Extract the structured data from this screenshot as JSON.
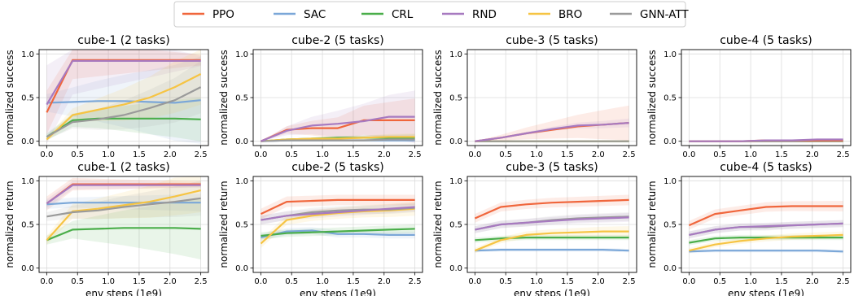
{
  "legend": [
    {
      "name": "PPO",
      "color": "#f0663c"
    },
    {
      "name": "SAC",
      "color": "#7ba7d8"
    },
    {
      "name": "CRL",
      "color": "#4aae4a"
    },
    {
      "name": "RND",
      "color": "#a77ac0"
    },
    {
      "name": "BRO",
      "color": "#f6c443"
    },
    {
      "name": "GNN-ATT",
      "color": "#9a9a9a"
    }
  ],
  "chart_data": [
    {
      "type": "line",
      "title": "cube-1 (2 tasks)",
      "ylabel": "normalized success",
      "xlabel": "",
      "x": [
        0,
        0.42,
        0.83,
        1.25,
        1.67,
        2.08,
        2.5
      ],
      "xlim": [
        0,
        2.5
      ],
      "ylim": [
        0,
        1.0
      ],
      "xticks": [
        "0.0",
        "0.5",
        "1.0",
        "1.5",
        "2.0",
        "2.5"
      ],
      "yticks": [
        "0.0",
        "0.5",
        "1.0"
      ],
      "series": [
        {
          "name": "PPO",
          "color": "#f0663c",
          "values": [
            0.33,
            0.93,
            0.93,
            0.93,
            0.93,
            0.93,
            0.93
          ],
          "band": [
            0.25,
            0.06
          ]
        },
        {
          "name": "SAC",
          "color": "#7ba7d8",
          "values": [
            0.44,
            0.45,
            0.46,
            0.46,
            0.45,
            0.44,
            0.47
          ],
          "band": [
            0.1,
            0.5
          ]
        },
        {
          "name": "CRL",
          "color": "#4aae4a",
          "values": [
            0.05,
            0.24,
            0.26,
            0.26,
            0.26,
            0.26,
            0.25
          ],
          "band": [
            0.04,
            0.25
          ]
        },
        {
          "name": "RND",
          "color": "#a77ac0",
          "values": [
            0.42,
            0.92,
            0.92,
            0.92,
            0.92,
            0.92,
            0.92
          ],
          "band": [
            0.45,
            0.06
          ]
        },
        {
          "name": "BRO",
          "color": "#f6c443",
          "values": [
            0.02,
            0.3,
            0.36,
            0.42,
            0.5,
            0.62,
            0.77
          ],
          "band": [
            0.02,
            0.35
          ]
        },
        {
          "name": "GNN-ATT",
          "color": "#9a9a9a",
          "values": [
            0.05,
            0.22,
            0.25,
            0.3,
            0.38,
            0.47,
            0.62
          ],
          "band": [
            0.03,
            0.3
          ]
        }
      ]
    },
    {
      "type": "line",
      "title": "cube-2 (5 tasks)",
      "ylabel": "normalized success",
      "xlabel": "",
      "x": [
        0,
        0.42,
        0.83,
        1.25,
        1.67,
        2.08,
        2.5
      ],
      "xlim": [
        0,
        2.5
      ],
      "ylim": [
        0,
        1.0
      ],
      "xticks": [
        "0.0",
        "0.5",
        "1.0",
        "1.5",
        "2.0",
        "2.5"
      ],
      "yticks": [
        "0.0",
        "0.5",
        "1.0"
      ],
      "series": [
        {
          "name": "PPO",
          "color": "#f0663c",
          "values": [
            0.0,
            0.13,
            0.15,
            0.15,
            0.24,
            0.24,
            0.24
          ],
          "band": [
            0.0,
            0.25
          ]
        },
        {
          "name": "SAC",
          "color": "#7ba7d8",
          "values": [
            0.0,
            0.01,
            0.01,
            0.01,
            0.01,
            0.01,
            0.01
          ],
          "band": [
            0.0,
            0.02
          ]
        },
        {
          "name": "CRL",
          "color": "#4aae4a",
          "values": [
            0.0,
            0.02,
            0.03,
            0.04,
            0.04,
            0.04,
            0.04
          ],
          "band": [
            0.0,
            0.04
          ]
        },
        {
          "name": "RND",
          "color": "#a77ac0",
          "values": [
            0.0,
            0.12,
            0.18,
            0.2,
            0.23,
            0.28,
            0.28
          ],
          "band": [
            0.0,
            0.3
          ]
        },
        {
          "name": "BRO",
          "color": "#f6c443",
          "values": [
            0.0,
            0.02,
            0.03,
            0.03,
            0.04,
            0.05,
            0.05
          ],
          "band": [
            0.0,
            0.04
          ]
        },
        {
          "name": "GNN-ATT",
          "color": "#9a9a9a",
          "values": [
            0.0,
            0.01,
            0.01,
            0.01,
            0.01,
            0.02,
            0.02
          ],
          "band": [
            0.0,
            0.02
          ]
        }
      ]
    },
    {
      "type": "line",
      "title": "cube-3 (5 tasks)",
      "ylabel": "normalized success",
      "xlabel": "",
      "x": [
        0,
        0.42,
        0.83,
        1.25,
        1.67,
        2.08,
        2.5
      ],
      "xlim": [
        0,
        2.5
      ],
      "ylim": [
        0,
        1.0
      ],
      "xticks": [
        "0.0",
        "0.5",
        "1.0",
        "1.5",
        "2.0",
        "2.5"
      ],
      "yticks": [
        "0.0",
        "0.5",
        "1.0"
      ],
      "series": [
        {
          "name": "PPO",
          "color": "#f0663c",
          "values": [
            0.0,
            0.04,
            0.09,
            0.13,
            0.17,
            0.19,
            0.21
          ],
          "band": [
            0.0,
            0.2
          ]
        },
        {
          "name": "SAC",
          "color": "#7ba7d8",
          "values": [
            0.0,
            0.0,
            0.0,
            0.0,
            0.0,
            0.0,
            0.0
          ],
          "band": [
            0.0,
            0.0
          ]
        },
        {
          "name": "CRL",
          "color": "#4aae4a",
          "values": [
            0.0,
            0.0,
            0.0,
            0.0,
            0.0,
            0.0,
            0.0
          ],
          "band": [
            0.0,
            0.0
          ]
        },
        {
          "name": "RND",
          "color": "#a77ac0",
          "values": [
            0.0,
            0.04,
            0.09,
            0.14,
            0.18,
            0.19,
            0.21
          ],
          "band": [
            0.0,
            0.05
          ]
        },
        {
          "name": "BRO",
          "color": "#f6c443",
          "values": [
            0.0,
            0.0,
            0.0,
            0.0,
            0.0,
            0.0,
            0.0
          ],
          "band": [
            0.0,
            0.0
          ]
        },
        {
          "name": "GNN-ATT",
          "color": "#9a9a9a",
          "values": [
            0.0,
            0.0,
            0.0,
            0.0,
            0.0,
            0.0,
            0.0
          ],
          "band": [
            0.0,
            0.0
          ]
        }
      ]
    },
    {
      "type": "line",
      "title": "cube-4 (5 tasks)",
      "ylabel": "normalized success",
      "xlabel": "",
      "x": [
        0,
        0.42,
        0.83,
        1.25,
        1.67,
        2.08,
        2.5
      ],
      "xlim": [
        0,
        2.5
      ],
      "ylim": [
        0,
        1.0
      ],
      "xticks": [
        "0.0",
        "0.5",
        "1.0",
        "1.5",
        "2.0",
        "2.5"
      ],
      "yticks": [
        "0.0",
        "0.5",
        "1.0"
      ],
      "series": [
        {
          "name": "PPO",
          "color": "#f0663c",
          "values": [
            0.0,
            0.0,
            0.0,
            0.01,
            0.01,
            0.01,
            0.01
          ],
          "band": [
            0.0,
            0.01
          ]
        },
        {
          "name": "SAC",
          "color": "#7ba7d8",
          "values": [
            0.0,
            0.0,
            0.0,
            0.0,
            0.0,
            0.0,
            0.0
          ],
          "band": [
            0.0,
            0.0
          ]
        },
        {
          "name": "CRL",
          "color": "#4aae4a",
          "values": [
            0.0,
            0.0,
            0.0,
            0.0,
            0.0,
            0.0,
            0.0
          ],
          "band": [
            0.0,
            0.0
          ]
        },
        {
          "name": "RND",
          "color": "#a77ac0",
          "values": [
            0.0,
            0.0,
            0.0,
            0.01,
            0.01,
            0.02,
            0.02
          ],
          "band": [
            0.0,
            0.01
          ]
        },
        {
          "name": "BRO",
          "color": "#f6c443",
          "values": [
            0.0,
            0.0,
            0.0,
            0.0,
            0.0,
            0.0,
            0.0
          ],
          "band": [
            0.0,
            0.0
          ]
        },
        {
          "name": "GNN-ATT",
          "color": "#9a9a9a",
          "values": [
            0.0,
            0.0,
            0.0,
            0.0,
            0.0,
            0.0,
            0.0
          ],
          "band": [
            0.0,
            0.0
          ]
        }
      ]
    },
    {
      "type": "line",
      "title": "cube-1 (2 tasks)",
      "ylabel": "normalized return",
      "xlabel": "env steps (1e9)",
      "x": [
        0,
        0.42,
        0.83,
        1.25,
        1.67,
        2.08,
        2.5
      ],
      "xlim": [
        0,
        2.5
      ],
      "ylim": [
        0,
        1.0
      ],
      "xticks": [
        "0.0",
        "0.5",
        "1.0",
        "1.5",
        "2.0",
        "2.5"
      ],
      "yticks": [
        "0.0",
        "0.5",
        "1.0"
      ],
      "series": [
        {
          "name": "PPO",
          "color": "#f0663c",
          "values": [
            0.74,
            0.96,
            0.96,
            0.96,
            0.96,
            0.96,
            0.96
          ],
          "band": [
            0.08,
            0.03
          ]
        },
        {
          "name": "SAC",
          "color": "#7ba7d8",
          "values": [
            0.73,
            0.75,
            0.75,
            0.75,
            0.75,
            0.75,
            0.75
          ],
          "band": [
            0.05,
            0.1
          ]
        },
        {
          "name": "CRL",
          "color": "#4aae4a",
          "values": [
            0.32,
            0.44,
            0.45,
            0.46,
            0.46,
            0.46,
            0.45
          ],
          "band": [
            0.05,
            0.35
          ]
        },
        {
          "name": "RND",
          "color": "#a77ac0",
          "values": [
            0.74,
            0.95,
            0.95,
            0.95,
            0.95,
            0.95,
            0.95
          ],
          "band": [
            0.05,
            0.03
          ]
        },
        {
          "name": "BRO",
          "color": "#f6c443",
          "values": [
            0.32,
            0.65,
            0.68,
            0.72,
            0.76,
            0.82,
            0.89
          ],
          "band": [
            0.05,
            0.25
          ]
        },
        {
          "name": "GNN-ATT",
          "color": "#9a9a9a",
          "values": [
            0.59,
            0.64,
            0.66,
            0.7,
            0.73,
            0.76,
            0.8
          ],
          "band": [
            0.05,
            0.2
          ]
        }
      ]
    },
    {
      "type": "line",
      "title": "cube-2 (5 tasks)",
      "ylabel": "normalized return",
      "xlabel": "env steps (1e9)",
      "x": [
        0,
        0.42,
        0.83,
        1.25,
        1.67,
        2.08,
        2.5
      ],
      "xlim": [
        0,
        2.5
      ],
      "ylim": [
        0,
        1.0
      ],
      "xticks": [
        "0.0",
        "0.5",
        "1.0",
        "1.5",
        "2.0",
        "2.5"
      ],
      "yticks": [
        "0.0",
        "0.5",
        "1.0"
      ],
      "series": [
        {
          "name": "PPO",
          "color": "#f0663c",
          "values": [
            0.62,
            0.76,
            0.77,
            0.78,
            0.78,
            0.78,
            0.78
          ],
          "band": [
            0.06,
            0.06
          ]
        },
        {
          "name": "SAC",
          "color": "#7ba7d8",
          "values": [
            0.35,
            0.42,
            0.43,
            0.39,
            0.39,
            0.38,
            0.38
          ],
          "band": [
            0.04,
            0.04
          ]
        },
        {
          "name": "CRL",
          "color": "#4aae4a",
          "values": [
            0.37,
            0.4,
            0.41,
            0.42,
            0.43,
            0.44,
            0.45
          ],
          "band": [
            0.04,
            0.05
          ]
        },
        {
          "name": "RND",
          "color": "#a77ac0",
          "values": [
            0.55,
            0.6,
            0.62,
            0.64,
            0.66,
            0.68,
            0.7
          ],
          "band": [
            0.05,
            0.05
          ]
        },
        {
          "name": "BRO",
          "color": "#f6c443",
          "values": [
            0.28,
            0.55,
            0.6,
            0.63,
            0.65,
            0.66,
            0.68
          ],
          "band": [
            0.05,
            0.08
          ]
        },
        {
          "name": "GNN-ATT",
          "color": "#9a9a9a",
          "values": [
            0.55,
            0.6,
            0.64,
            0.66,
            0.67,
            0.67,
            0.69
          ],
          "band": [
            0.05,
            0.05
          ]
        }
      ]
    },
    {
      "type": "line",
      "title": "cube-3 (5 tasks)",
      "ylabel": "normalized return",
      "xlabel": "env steps (1e9)",
      "x": [
        0,
        0.42,
        0.83,
        1.25,
        1.67,
        2.08,
        2.5
      ],
      "xlim": [
        0,
        2.5
      ],
      "ylim": [
        0,
        1.0
      ],
      "xticks": [
        "0.0",
        "0.5",
        "1.0",
        "1.5",
        "2.0",
        "2.5"
      ],
      "yticks": [
        "0.0",
        "0.5",
        "1.0"
      ],
      "series": [
        {
          "name": "PPO",
          "color": "#f0663c",
          "values": [
            0.57,
            0.7,
            0.73,
            0.75,
            0.76,
            0.77,
            0.78
          ],
          "band": [
            0.05,
            0.06
          ]
        },
        {
          "name": "SAC",
          "color": "#7ba7d8",
          "values": [
            0.2,
            0.21,
            0.21,
            0.21,
            0.21,
            0.21,
            0.2
          ],
          "band": [
            0.02,
            0.02
          ]
        },
        {
          "name": "CRL",
          "color": "#4aae4a",
          "values": [
            0.32,
            0.34,
            0.35,
            0.35,
            0.35,
            0.35,
            0.35
          ],
          "band": [
            0.03,
            0.03
          ]
        },
        {
          "name": "RND",
          "color": "#a77ac0",
          "values": [
            0.44,
            0.5,
            0.52,
            0.54,
            0.56,
            0.57,
            0.58
          ],
          "band": [
            0.04,
            0.05
          ]
        },
        {
          "name": "BRO",
          "color": "#f6c443",
          "values": [
            0.2,
            0.32,
            0.38,
            0.4,
            0.41,
            0.42,
            0.42
          ],
          "band": [
            0.03,
            0.06
          ]
        },
        {
          "name": "GNN-ATT",
          "color": "#9a9a9a",
          "values": [
            0.44,
            0.5,
            0.52,
            0.55,
            0.57,
            0.58,
            0.59
          ],
          "band": [
            0.04,
            0.05
          ]
        }
      ]
    },
    {
      "type": "line",
      "title": "cube-4 (5 tasks)",
      "ylabel": "normalized return",
      "xlabel": "env steps (1e9)",
      "x": [
        0,
        0.42,
        0.83,
        1.25,
        1.67,
        2.08,
        2.5
      ],
      "xlim": [
        0,
        2.5
      ],
      "ylim": [
        0,
        1.0
      ],
      "xticks": [
        "0.0",
        "0.5",
        "1.0",
        "1.5",
        "2.0",
        "2.5"
      ],
      "yticks": [
        "0.0",
        "0.5",
        "1.0"
      ],
      "series": [
        {
          "name": "PPO",
          "color": "#f0663c",
          "values": [
            0.49,
            0.62,
            0.66,
            0.7,
            0.71,
            0.71,
            0.71
          ],
          "band": [
            0.05,
            0.06
          ]
        },
        {
          "name": "SAC",
          "color": "#7ba7d8",
          "values": [
            0.19,
            0.2,
            0.2,
            0.2,
            0.2,
            0.2,
            0.19
          ],
          "band": [
            0.02,
            0.02
          ]
        },
        {
          "name": "CRL",
          "color": "#4aae4a",
          "values": [
            0.29,
            0.34,
            0.35,
            0.35,
            0.35,
            0.35,
            0.35
          ],
          "band": [
            0.03,
            0.03
          ]
        },
        {
          "name": "RND",
          "color": "#a77ac0",
          "values": [
            0.38,
            0.44,
            0.47,
            0.48,
            0.49,
            0.5,
            0.51
          ],
          "band": [
            0.04,
            0.04
          ]
        },
        {
          "name": "BRO",
          "color": "#f6c443",
          "values": [
            0.2,
            0.27,
            0.31,
            0.34,
            0.36,
            0.37,
            0.38
          ],
          "band": [
            0.03,
            0.04
          ]
        },
        {
          "name": "GNN-ATT",
          "color": "#9a9a9a",
          "values": [
            0.38,
            0.44,
            0.47,
            0.47,
            0.49,
            0.5,
            0.51
          ],
          "band": [
            0.04,
            0.04
          ]
        }
      ]
    }
  ]
}
